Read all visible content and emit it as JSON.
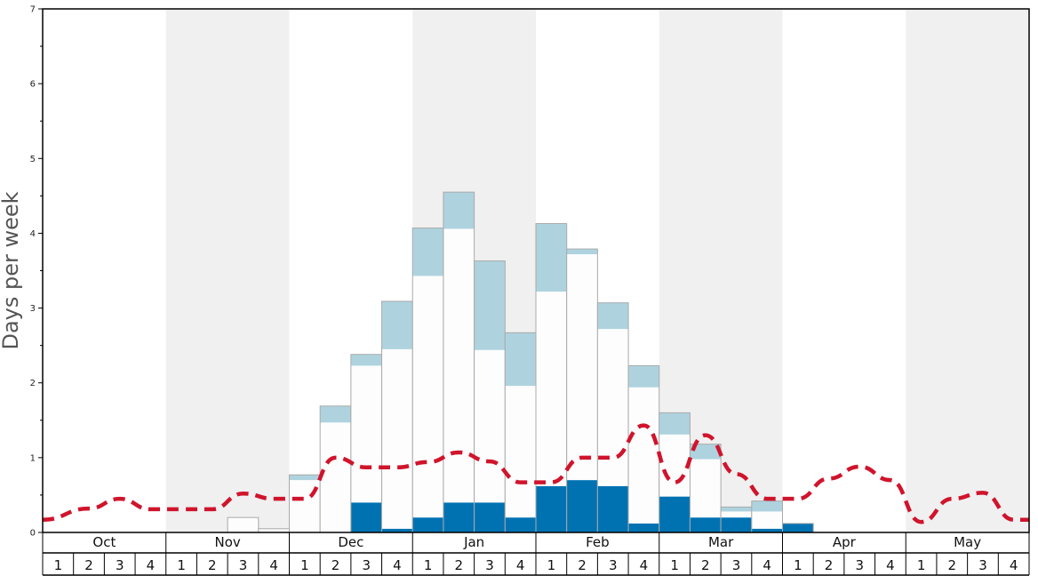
{
  "chart_data": {
    "type": "bar",
    "ylabel": "Days per week",
    "ylim": [
      0,
      7
    ],
    "yticks_labeled": [
      0,
      1,
      2,
      3,
      4,
      5,
      6,
      7
    ],
    "months": [
      "Oct",
      "Nov",
      "Dec",
      "Jan",
      "Feb",
      "Mar",
      "Apr",
      "May"
    ],
    "weeks_per_month": [
      "1",
      "2",
      "3",
      "4"
    ],
    "shaded_months": [
      "Nov",
      "Jan",
      "Mar",
      "May"
    ],
    "colors": {
      "dark_blue": "#0072b2",
      "white": "#fdfdfd",
      "light_blue": "#aed3df",
      "bar_outline": "#aaaaaa",
      "dashed_line": "#d0142c",
      "shade": "#f0f0f0"
    },
    "series": [
      {
        "values": [
          0,
          0,
          0,
          0,
          0,
          0,
          0,
          0,
          0,
          0,
          0.4,
          0.05,
          0.2,
          0.4,
          0.4,
          0.2,
          0.62,
          0.7,
          0.62,
          0.12,
          0.48,
          0.2,
          0.2,
          0.05,
          0.12,
          0,
          0,
          0,
          0,
          0,
          0,
          0,
          0
        ]
      },
      {
        "values": [
          0,
          0,
          0,
          0,
          0,
          0,
          0.2,
          0.05,
          0.7,
          1.47,
          1.83,
          2.4,
          3.23,
          3.66,
          2.04,
          1.76,
          2.6,
          3.02,
          2.1,
          1.82,
          0.83,
          0.78,
          0.08,
          0.23,
          0,
          0,
          0,
          0,
          0,
          0,
          0,
          0,
          0
        ]
      },
      {
        "values": [
          0,
          0,
          0,
          0,
          0,
          0,
          0,
          0,
          0.07,
          0.22,
          0.15,
          0.64,
          0.64,
          0.49,
          1.19,
          0.71,
          0.91,
          0.07,
          0.35,
          0.29,
          0.29,
          0.2,
          0.06,
          0.14,
          0,
          0,
          0,
          0,
          0,
          0,
          0,
          0,
          0
        ]
      },
      {
        "values": [
          0.17,
          0.32,
          0.45,
          0.31,
          0.31,
          0.31,
          0.52,
          0.45,
          0.45,
          1.0,
          0.87,
          0.87,
          0.94,
          1.07,
          0.95,
          0.67,
          0.67,
          1.0,
          1.0,
          1.43,
          0.67,
          1.3,
          0.78,
          0.45,
          0.45,
          0.72,
          0.88,
          0.7,
          0.14,
          0.45,
          0.53,
          0.17,
          0.17
        ]
      }
    ]
  }
}
